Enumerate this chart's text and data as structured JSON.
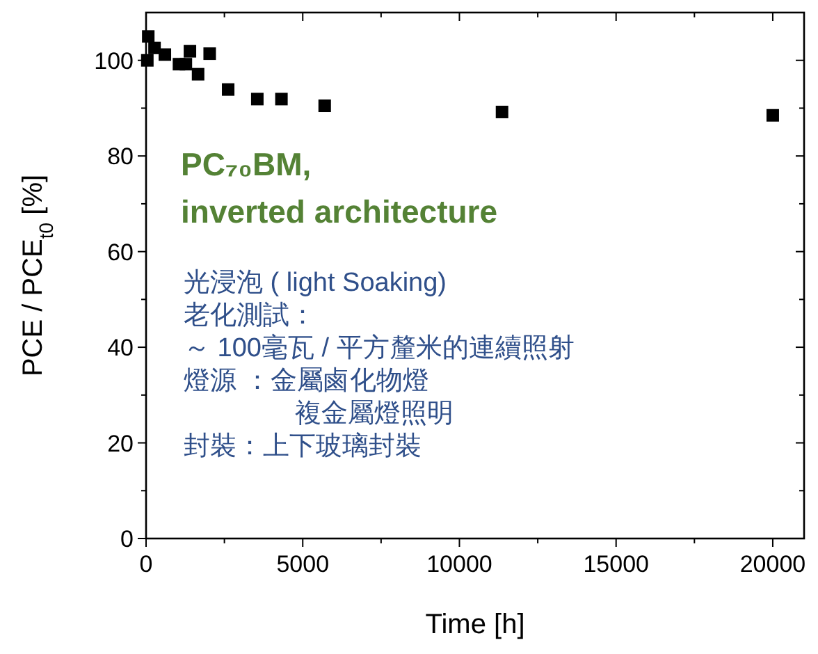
{
  "chart_data": {
    "type": "scatter",
    "xlabel": "Time [h]",
    "ylabel": "PCE / PCE$_{t0}$ [%]",
    "marker": "square",
    "series": [
      {
        "color": "#000000",
        "x": [
          40,
          70,
          270,
          600,
          1050,
          1270,
          1400,
          1660,
          2030,
          2620,
          3550,
          4320,
          5700,
          11360,
          20000
        ],
        "values": [
          100,
          105,
          102.6,
          101.2,
          99.2,
          99.2,
          101.9,
          97.1,
          101.4,
          93.9,
          91.9,
          91.9,
          90.5,
          89.2,
          88.5
        ]
      }
    ],
    "xlim": [
      0,
      21000
    ],
    "xticks": [
      0,
      5000,
      10000,
      15000,
      20000
    ],
    "ylim": [
      0,
      110
    ],
    "yticks": [
      0,
      20,
      40,
      60,
      80,
      100
    ],
    "annotations": [
      "PC₇₀BM,",
      "inverted architecture",
      "光浸泡 ( light Soaking)",
      "老化測試：",
      "～ 100毫瓦 / 平方釐米的連續照射",
      "燈源 ：金屬鹵化物燈",
      "複金屬燈照明",
      "封裝：上下玻璃封裝"
    ]
  }
}
